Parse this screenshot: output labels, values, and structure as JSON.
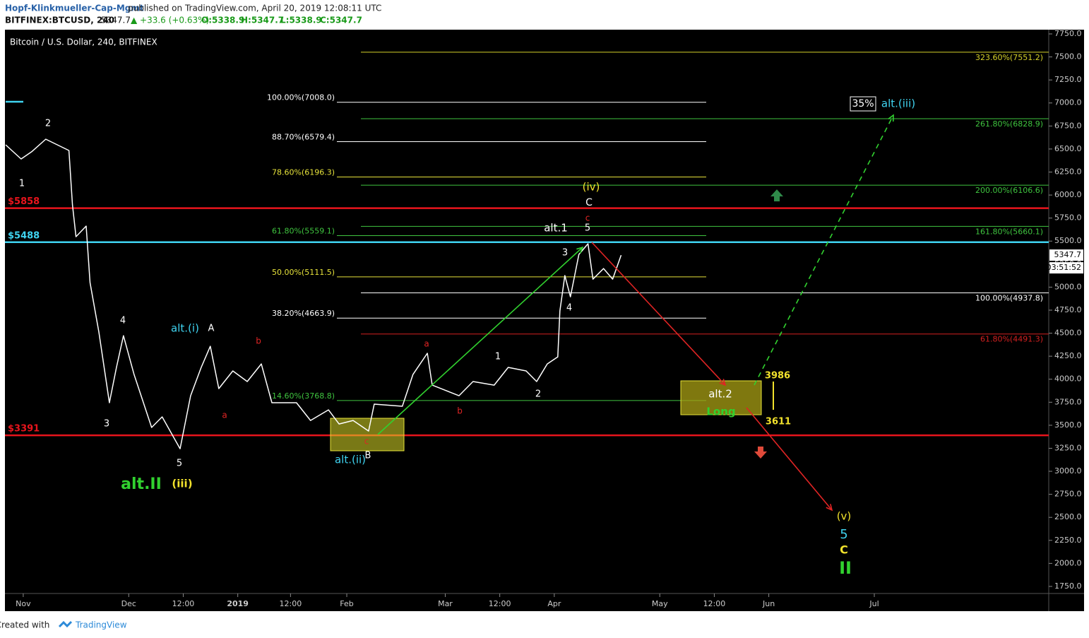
{
  "header": {
    "publisher": "Hopf-Klinkmueller-Cap-Mgmt",
    "published": "published on TradingView.com, April 20, 2019 12:08:11 UTC",
    "symbol": "BITFINEX:BTCUSD, 240",
    "last": "5347.7",
    "change": "▲ +33.6 (+0.63%)",
    "ohlc": [
      "O:5338.9",
      "H:5347.7",
      "L:5338.9",
      "C:5347.7"
    ]
  },
  "chart_data": {
    "type": "line",
    "title": "Bitcoin / U.S. Dollar, 240, BITFINEX",
    "background": "#000000",
    "series": [
      {
        "color": "#ffffff",
        "x": [
          -5,
          -0.6,
          2.4,
          6.4,
          13,
          14,
          15,
          17.9,
          19,
          21.5,
          24.5,
          26.5,
          28.5,
          31.5,
          36.5,
          39.5,
          44.6,
          47.6,
          50.6,
          53.2,
          55.6,
          59.6,
          63.7,
          67.7,
          70.7,
          77.7,
          81.7,
          86.8,
          89.8,
          93.8,
          98.2,
          99.8,
          107.8,
          110.8,
          114.9,
          116.3,
          123.9,
          127.9,
          133.9,
          137.9,
          143,
          146,
          149,
          152,
          152.6,
          154,
          155.6,
          158,
          160.6,
          162,
          165,
          167.6,
          170
        ],
        "values": [
          6545,
          6392,
          6470,
          6607,
          6484,
          5893,
          5548,
          5663,
          5049,
          4512,
          3745,
          4128,
          4473,
          4052,
          3476,
          3591,
          3245,
          3821,
          4128,
          4358,
          3898,
          4090,
          3975,
          4166,
          3745,
          3745,
          3552,
          3667,
          3514,
          3552,
          3437,
          3729,
          3706,
          4051,
          4282,
          3936,
          3821,
          3975,
          3936,
          4128,
          4090,
          3975,
          4166,
          4243,
          4742,
          5126,
          4895,
          5355,
          5471,
          5087,
          5202,
          5087,
          5347.7
        ]
      }
    ],
    "xlim": [
      -5.2,
      291.6
    ],
    "ylim": [
      1673,
      7796
    ],
    "xticks": [
      {
        "value": 0,
        "label": "Nov"
      },
      {
        "value": 30,
        "label": "Dec"
      },
      {
        "value": 45.5,
        "label": "12:00"
      },
      {
        "value": 61,
        "label": "2019"
      },
      {
        "value": 76,
        "label": "12:00"
      },
      {
        "value": 92,
        "label": "Feb"
      },
      {
        "value": 120,
        "label": "Mar"
      },
      {
        "value": 135.5,
        "label": "12:00"
      },
      {
        "value": 151,
        "label": "Apr"
      },
      {
        "value": 181,
        "label": "May"
      },
      {
        "value": 196.5,
        "label": "12:00"
      },
      {
        "value": 212,
        "label": "Jun"
      },
      {
        "value": 242,
        "label": "Jul"
      }
    ],
    "yticks": [
      {
        "value": 1750,
        "label": "1750.0"
      },
      {
        "value": 2000,
        "label": "2000.0"
      },
      {
        "value": 2250,
        "label": "2250.0"
      },
      {
        "value": 2500,
        "label": "2500.0"
      },
      {
        "value": 2750,
        "label": "2750.0"
      },
      {
        "value": 3000,
        "label": "3000.0"
      },
      {
        "value": 3250,
        "label": "3250.0"
      },
      {
        "value": 3500,
        "label": "3500.0"
      },
      {
        "value": 3750,
        "label": "3750.0"
      },
      {
        "value": 4000,
        "label": "4000.0"
      },
      {
        "value": 4250,
        "label": "4250.0"
      },
      {
        "value": 4500,
        "label": "4500.0"
      },
      {
        "value": 4750,
        "label": "4750.0"
      },
      {
        "value": 5000,
        "label": "5000.0"
      },
      {
        "value": 5250,
        "label": "5250.0"
      },
      {
        "value": 5500,
        "label": "5500.0"
      },
      {
        "value": 5750,
        "label": "5750.0"
      },
      {
        "value": 6000,
        "label": "6000.0"
      },
      {
        "value": 6250,
        "label": "6250.0"
      },
      {
        "value": 6500,
        "label": "6500.0"
      },
      {
        "value": 6750,
        "label": "6750.0"
      },
      {
        "value": 7000,
        "label": "7000.0"
      },
      {
        "value": 7250,
        "label": "7250.0"
      },
      {
        "value": 7500,
        "label": "7500.0"
      },
      {
        "value": 7750,
        "label": "7750.0"
      }
    ],
    "last_price": 5347.7,
    "countdown": "03:51:52",
    "price_levels": [
      {
        "label": "$5858",
        "value": 5858,
        "color": "#e8141c"
      },
      {
        "label": "$5488",
        "value": 5488,
        "color": "#3fd3f0"
      },
      {
        "label": "$3391",
        "value": 3391,
        "color": "#e8141c"
      }
    ],
    "fib_retracement": [
      {
        "label": "100.00%(7008.0)",
        "value": 7008,
        "color": "#ffffff"
      },
      {
        "label": "88.70%(6579.4)",
        "value": 6579.4,
        "color": "#ffffff"
      },
      {
        "label": "78.60%(6196.3)",
        "value": 6196.3,
        "color": "#e6e23a"
      },
      {
        "label": "61.80%(5559.1)",
        "value": 5559.1,
        "color": "#3fc43f"
      },
      {
        "label": "50.00%(5111.5)",
        "value": 5111.5,
        "color": "#e6e23a"
      },
      {
        "label": "38.20%(4663.9)",
        "value": 4663.9,
        "color": "#ffffff"
      },
      {
        "label": "14.60%(3768.8)",
        "value": 3768.8,
        "color": "#3fc43f"
      }
    ],
    "fib_extension": [
      {
        "label": "323.60%(7551.2)",
        "value": 7551.2,
        "color": "#d6d22a"
      },
      {
        "label": "261.80%(6828.9)",
        "value": 6828.9,
        "color": "#3fc43f"
      },
      {
        "label": "200.00%(6106.6)",
        "value": 6106.6,
        "color": "#3fc43f"
      },
      {
        "label": "161.80%(5660.1)",
        "value": 5660.1,
        "color": "#3fc43f"
      },
      {
        "label": "100.00%(4937.8)",
        "value": 4937.8,
        "color": "#ffffff"
      },
      {
        "label": "61.80%(4491.3)",
        "value": 4491.3,
        "color": "#d42020"
      }
    ],
    "annotations": [
      {
        "text": "2",
        "color": "#ffffff"
      },
      {
        "text": "1",
        "color": "#ffffff"
      },
      {
        "text": "4",
        "color": "#ffffff"
      },
      {
        "text": "3",
        "color": "#ffffff"
      },
      {
        "text": "5",
        "color": "#ffffff"
      },
      {
        "text": "alt.(i)",
        "color": "#3fd3f0"
      },
      {
        "text": "A",
        "color": "#ffffff"
      },
      {
        "text": "b",
        "color": "#e02424"
      },
      {
        "text": "a",
        "color": "#e02424"
      },
      {
        "text": "alt.II",
        "color": "#31d12f"
      },
      {
        "text": "(iii)",
        "color": "#f2e22c"
      },
      {
        "text": "c",
        "color": "#e02424"
      },
      {
        "text": "alt.(ii)",
        "color": "#3fd3f0"
      },
      {
        "text": "B",
        "color": "#ffffff"
      },
      {
        "text": "a",
        "color": "#e02424"
      },
      {
        "text": "b",
        "color": "#e02424"
      },
      {
        "text": "1",
        "color": "#ffffff"
      },
      {
        "text": "2",
        "color": "#ffffff"
      },
      {
        "text": "3",
        "color": "#ffffff"
      },
      {
        "text": "4",
        "color": "#ffffff"
      },
      {
        "text": "alt.1",
        "color": "#ffffff"
      },
      {
        "text": "5",
        "color": "#ffffff"
      },
      {
        "text": "c",
        "color": "#e02424"
      },
      {
        "text": "C",
        "color": "#ffffff"
      },
      {
        "text": "(iv)",
        "color": "#f2e22c"
      },
      {
        "text": "alt.2",
        "color": "#ffffff"
      },
      {
        "text": "Long",
        "color": "#31d12f"
      },
      {
        "text": "3986",
        "color": "#f2e22c"
      },
      {
        "text": "3611",
        "color": "#f2e22c"
      },
      {
        "text": "35%",
        "color": "#ffffff"
      },
      {
        "text": "alt.(iii)",
        "color": "#3fd3f0"
      },
      {
        "text": "(v)",
        "color": "#f2e22c"
      },
      {
        "text": "5",
        "color": "#3fd3f0"
      },
      {
        "text": "C",
        "color": "#f2e22c"
      },
      {
        "text": "II",
        "color": "#31d12f"
      }
    ]
  },
  "footer": {
    "text": "Created with",
    "brand": "TradingView"
  }
}
